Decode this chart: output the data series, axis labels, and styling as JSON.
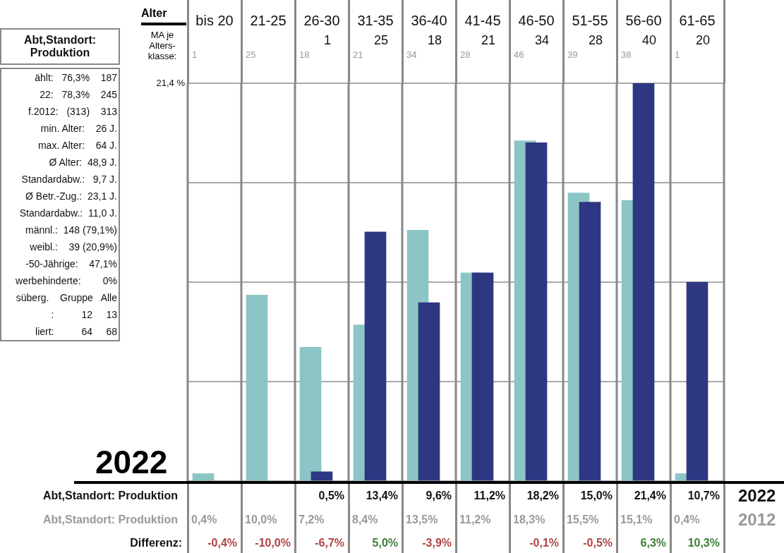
{
  "chart_data": {
    "type": "bar",
    "title": "Abt,Standort: Produktion",
    "subtitle": "2022",
    "xlabel": "Alter",
    "categories": [
      "bis 20",
      "21-25",
      "26-30",
      "31-35",
      "36-40",
      "41-45",
      "46-50",
      "51-55",
      "56-60",
      "61-65"
    ],
    "series": [
      {
        "name": "2012",
        "color": "#8cc5c5",
        "values": [
          0.4,
          10.0,
          7.2,
          8.4,
          13.5,
          11.2,
          18.3,
          15.5,
          15.1,
          0.4
        ],
        "value_labels": [
          "0,4%",
          "10,0%",
          "7,2%",
          "8,4%",
          "13,5%",
          "11,2%",
          "18,3%",
          "15,5%",
          "15,1%",
          "0,4%"
        ]
      },
      {
        "name": "2022",
        "color": "#2e3782",
        "values": [
          null,
          null,
          0.5,
          13.4,
          9.6,
          11.2,
          18.2,
          15.0,
          21.4,
          10.7
        ],
        "value_labels": [
          null,
          null,
          "0,5%",
          "13,4%",
          "9,6%",
          "11,2%",
          "18,2%",
          "15,0%",
          "21,4%",
          "10,7%"
        ]
      }
    ],
    "ylim": [
      0,
      21.4
    ],
    "yticks": [
      {
        "value": 0,
        "label": null
      },
      {
        "value": 5.35,
        "label": null
      },
      {
        "value": 10.7,
        "label": null
      },
      {
        "value": 16.05,
        "label": null
      },
      {
        "value": 21.4,
        "label": "21,4 %"
      }
    ],
    "grid": "y",
    "annotations": [
      "MA je Alters-klasse:",
      "Abt,Standort: Produktion",
      "Abt,Standort: Produktion",
      "Differenz:",
      "ählt:   76,3%    187",
      "22:   78,3%    245",
      "f.2012:   (313)    313",
      "min. Alter:    26 J.",
      "max. Alter:    64 J.",
      "Ø Alter:  48,9 J.",
      "Standardabw.:   9,7 J.",
      "Ø Betr.-Zug.:  23,1 J.",
      "Standardabw.:  11,0 J.",
      "männl.:  148 (79,1%)",
      "weibl.:    39 (20,9%)",
      "-50-Jährige:    47,1%",
      "werbehinderte:        0%",
      "süberg.    Gruppe   Alle",
      ":          12     13",
      "liert:          64     68",
      "1",
      "25",
      "18",
      "21",
      "34",
      "28",
      "40",
      "20",
      "1",
      "25",
      "18",
      "21",
      "34",
      "28",
      "46",
      "39",
      "38",
      "1",
      "-0,4%",
      "-10,0%",
      "-6,7%",
      "5,0%",
      "-3,9%",
      "-0,1%",
      "-0,5%",
      "6,3%",
      "10,3%"
    ]
  }
}
